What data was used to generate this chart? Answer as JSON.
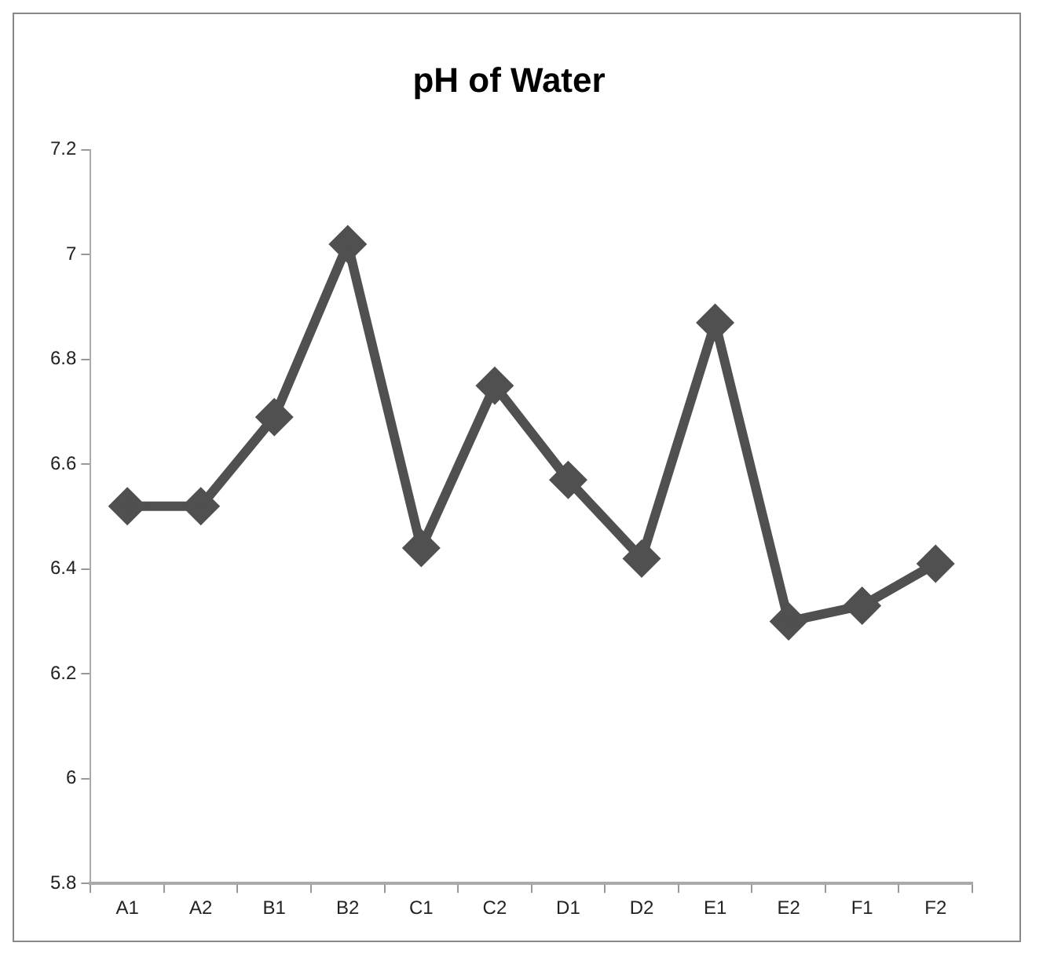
{
  "chart_data": {
    "type": "line",
    "title": "pH of Water",
    "categories": [
      "A1",
      "A2",
      "B1",
      "B2",
      "C1",
      "C2",
      "D1",
      "D2",
      "E1",
      "E2",
      "F1",
      "F2"
    ],
    "series": [
      {
        "color": "#505050",
        "values": [
          6.52,
          6.52,
          6.69,
          7.02,
          6.44,
          6.75,
          6.57,
          6.42,
          6.87,
          6.3,
          6.33,
          6.41
        ]
      }
    ],
    "ylim": [
      5.8,
      7.2
    ],
    "yticks": [
      5.8,
      6,
      6.2,
      6.4,
      6.6,
      6.8,
      7,
      7.2
    ],
    "grid": false,
    "legend": false,
    "marker": "diamond",
    "line_style": "solid"
  }
}
